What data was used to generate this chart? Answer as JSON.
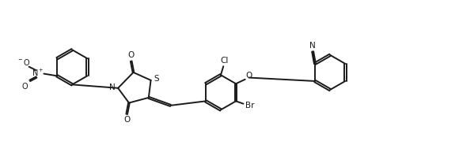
{
  "bg_color": "#ffffff",
  "line_color": "#1a1a1a",
  "line_width": 1.4,
  "font_size": 7.5,
  "figsize": [
    5.8,
    2.12
  ],
  "dpi": 100,
  "xlim": [
    0,
    10.5
  ],
  "ylim": [
    0,
    3.65
  ]
}
